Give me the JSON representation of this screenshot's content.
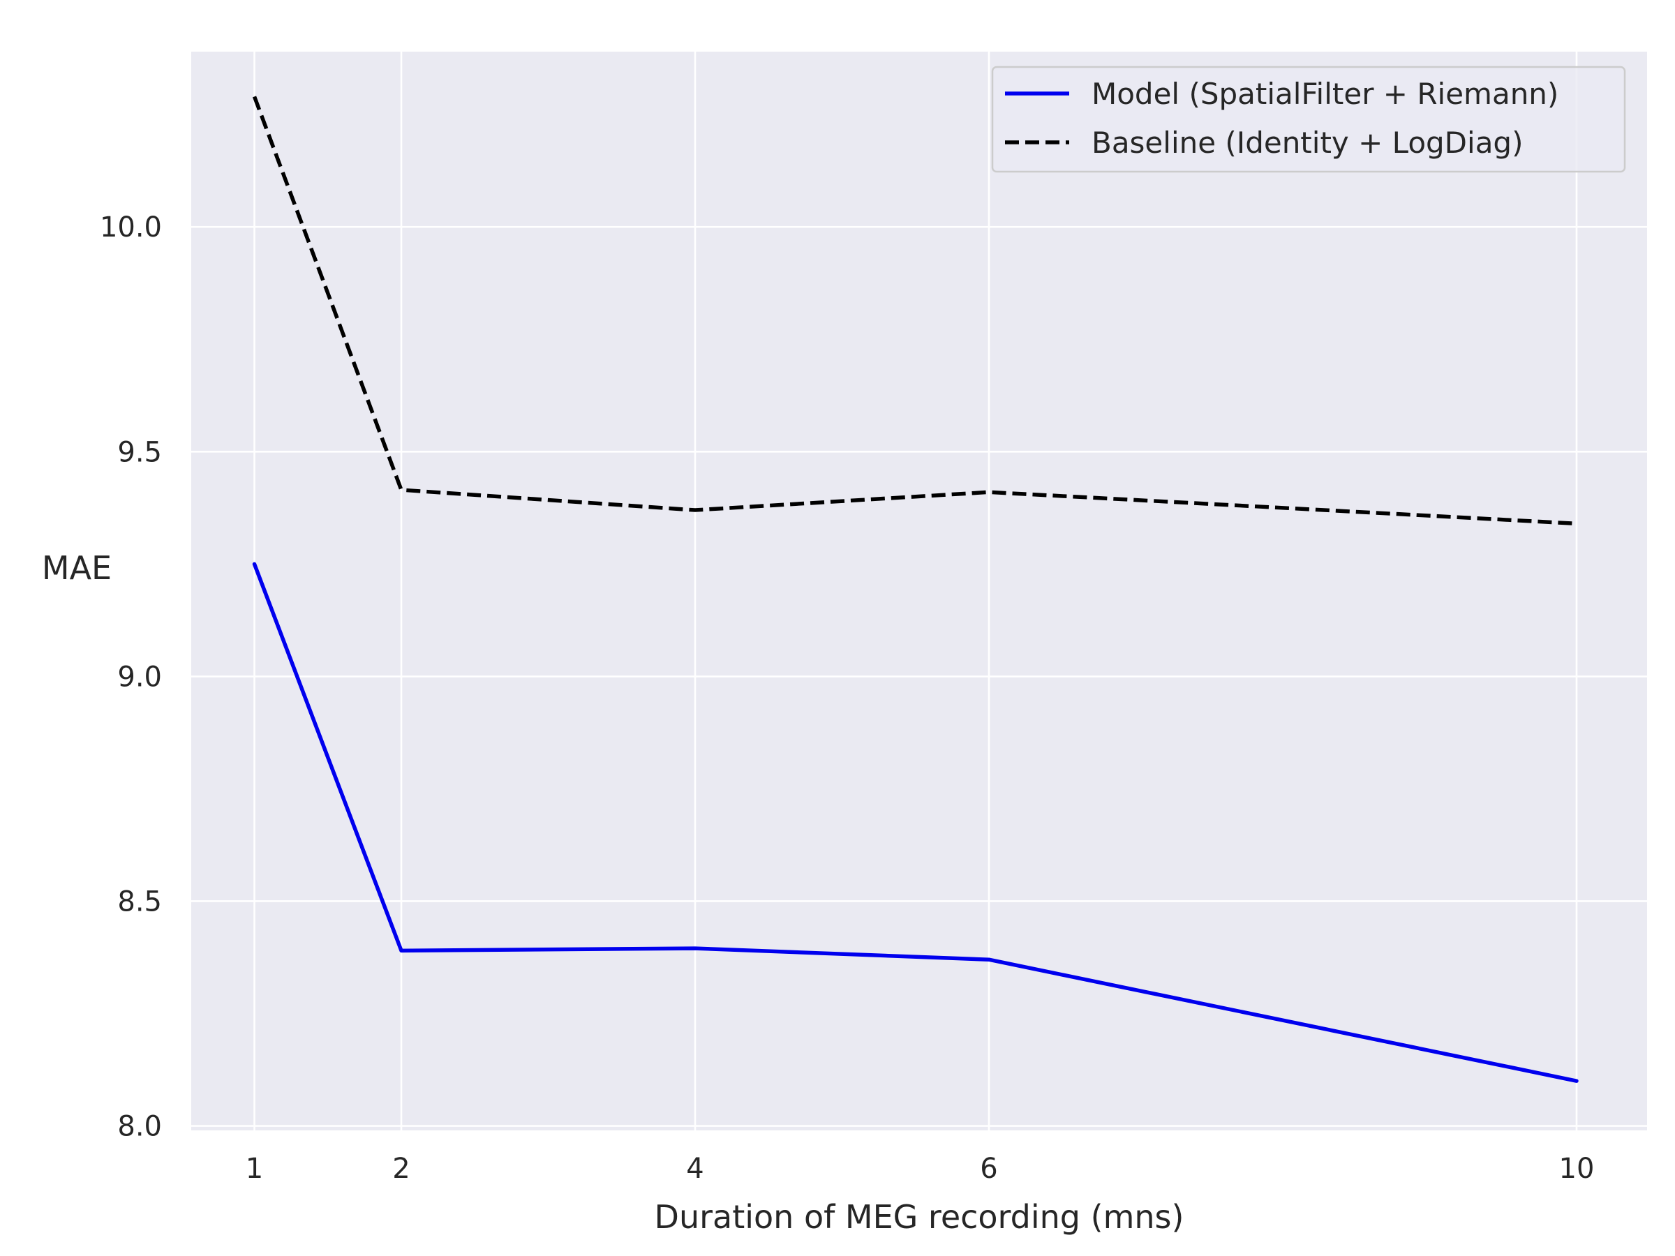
{
  "chart_data": {
    "type": "line",
    "title": "",
    "xlabel": "Duration of MEG recording (mns)",
    "ylabel": "MAE",
    "x": [
      1,
      2,
      4,
      6,
      10
    ],
    "x_ticks": [
      1,
      2,
      4,
      6,
      10
    ],
    "x_tick_labels": [
      "1",
      "2",
      "4",
      "6",
      "10"
    ],
    "y_ticks": [
      8.0,
      8.5,
      9.0,
      9.5,
      10.0
    ],
    "y_tick_labels": [
      "8.0",
      "8.5",
      "9.0",
      "9.5",
      "10.0"
    ],
    "xlim": [
      0.57,
      10.48
    ],
    "ylim": [
      7.99,
      10.39
    ],
    "grid": true,
    "legend_position": "top-right",
    "background_color": "#eaeaf2",
    "grid_color": "#ffffff",
    "series": [
      {
        "name": "Model (SpatialFilter + Riemann)",
        "values": [
          9.25,
          8.39,
          8.395,
          8.37,
          8.1
        ],
        "color": "#0000ee",
        "style": "solid"
      },
      {
        "name": "Baseline (Identity + LogDiag)",
        "values": [
          10.29,
          9.415,
          9.37,
          9.41,
          9.34
        ],
        "color": "#000000",
        "style": "dashed"
      }
    ]
  }
}
